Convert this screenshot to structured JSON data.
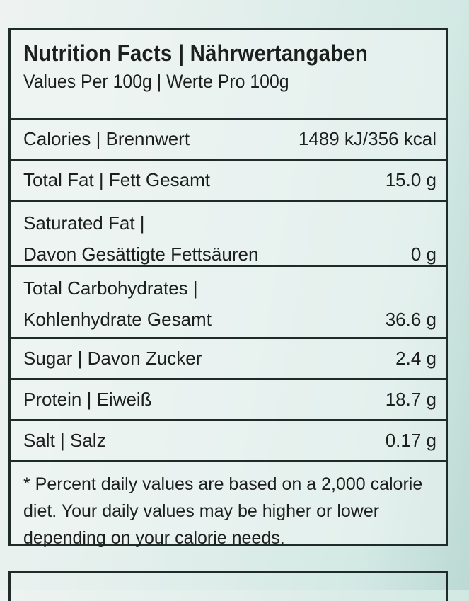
{
  "header": {
    "title": "Nutrition Facts | Nährwertangaben",
    "subtitle": "Values Per 100g | Werte Pro 100g"
  },
  "rows": [
    {
      "label": "Calories | Brennwert",
      "value": "1489 kJ/356 kcal"
    },
    {
      "label": "Total Fat | Fett Gesamt",
      "value": "15.0 g"
    },
    {
      "label_line1": "Saturated Fat |",
      "label": "Davon Gesättigte Fettsäuren",
      "value": "0 g"
    },
    {
      "label_line1": "Total Carbohydrates |",
      "label": "Kohlenhydrate Gesamt",
      "value": "36.6 g"
    },
    {
      "label": "Sugar | Davon Zucker",
      "value": "2.4 g"
    },
    {
      "label": "Protein | Eiweiß",
      "value": "18.7 g"
    },
    {
      "label": "Salt | Salz",
      "value": "0.17 g"
    }
  ],
  "footnote": "* Percent daily values are based on a 2,000 calorie diet. Your daily values may be higher or lower depending on your calorie needs.",
  "colors": {
    "border": "#1f2b29",
    "background": "#dfeeea"
  }
}
